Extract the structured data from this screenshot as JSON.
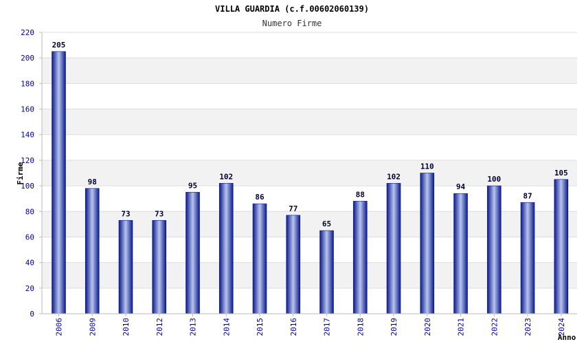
{
  "chart_data": {
    "type": "bar",
    "title": "VILLA GUARDIA (c.f.00602060139)",
    "subtitle": "Numero Firme",
    "xlabel": "Anno",
    "ylabel": "Firme",
    "categories": [
      "2006",
      "2009",
      "2010",
      "2012",
      "2013",
      "2014",
      "2015",
      "2016",
      "2017",
      "2018",
      "2019",
      "2020",
      "2021",
      "2022",
      "2023",
      "2024"
    ],
    "values": [
      205,
      98,
      73,
      73,
      95,
      102,
      86,
      77,
      65,
      88,
      102,
      110,
      94,
      100,
      87,
      105
    ],
    "ylim": [
      0,
      220
    ],
    "yticks": [
      0,
      20,
      40,
      60,
      80,
      100,
      120,
      140,
      160,
      180,
      200,
      220
    ],
    "grid": true,
    "data_labels": true,
    "colors": {
      "bar_dark": "#0a1a8a",
      "bar_light": "#b8c4ee",
      "band": "#f2f2f2",
      "tick_text": "#0000a0"
    }
  }
}
